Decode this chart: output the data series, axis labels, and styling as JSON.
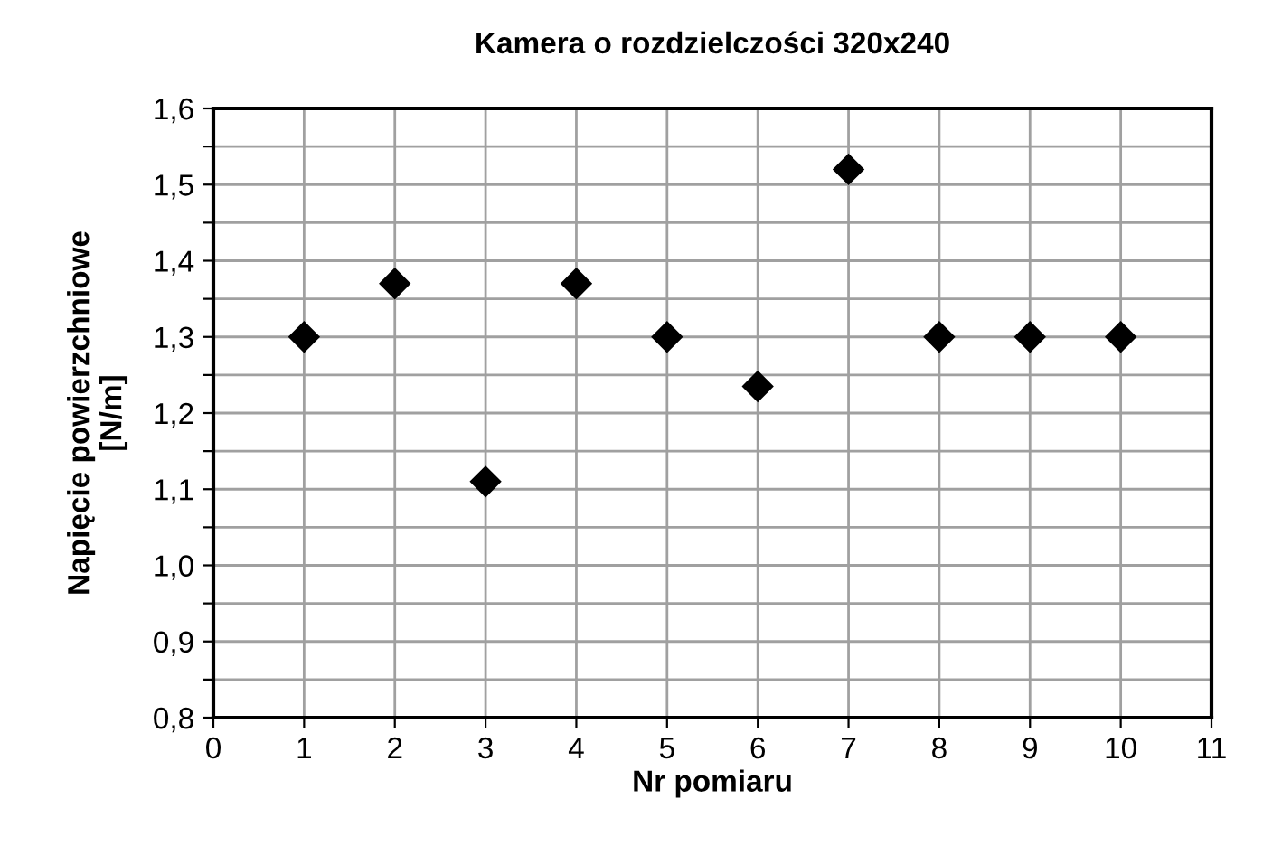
{
  "chart_data": {
    "type": "scatter",
    "title": "Kamera o rozdzielczości 320x240",
    "xlabel": "Nr pomiaru",
    "ylabel": "Napięcie powierzchniowe\n[N/m]",
    "x": [
      1,
      2,
      3,
      4,
      5,
      6,
      7,
      8,
      9,
      10
    ],
    "series": [
      {
        "color": "#000000",
        "values": [
          1.3,
          1.37,
          1.11,
          1.37,
          1.3,
          1.235,
          1.52,
          1.3,
          1.3,
          1.3
        ]
      }
    ],
    "marker": "diamond",
    "xlim": [
      0,
      11
    ],
    "xticks": [
      0,
      1,
      2,
      3,
      4,
      5,
      6,
      7,
      8,
      9,
      10,
      11
    ],
    "ylim": [
      0.8,
      1.6
    ],
    "yticks": [
      {
        "value": 0.8,
        "label": "0,8"
      },
      {
        "value": 0.85,
        "label": null
      },
      {
        "value": 0.9,
        "label": "0,9"
      },
      {
        "value": 0.95,
        "label": null
      },
      {
        "value": 1.0,
        "label": "1,0"
      },
      {
        "value": 1.05,
        "label": null
      },
      {
        "value": 1.1,
        "label": "1,1"
      },
      {
        "value": 1.15,
        "label": null
      },
      {
        "value": 1.2,
        "label": "1,2"
      },
      {
        "value": 1.25,
        "label": null
      },
      {
        "value": 1.3,
        "label": "1,3"
      },
      {
        "value": 1.35,
        "label": null
      },
      {
        "value": 1.4,
        "label": "1,4"
      },
      {
        "value": 1.45,
        "label": null
      },
      {
        "value": 1.5,
        "label": "1,5"
      },
      {
        "value": 1.55,
        "label": null
      },
      {
        "value": 1.6,
        "label": "1,6"
      }
    ],
    "grid": true,
    "legend": false
  }
}
